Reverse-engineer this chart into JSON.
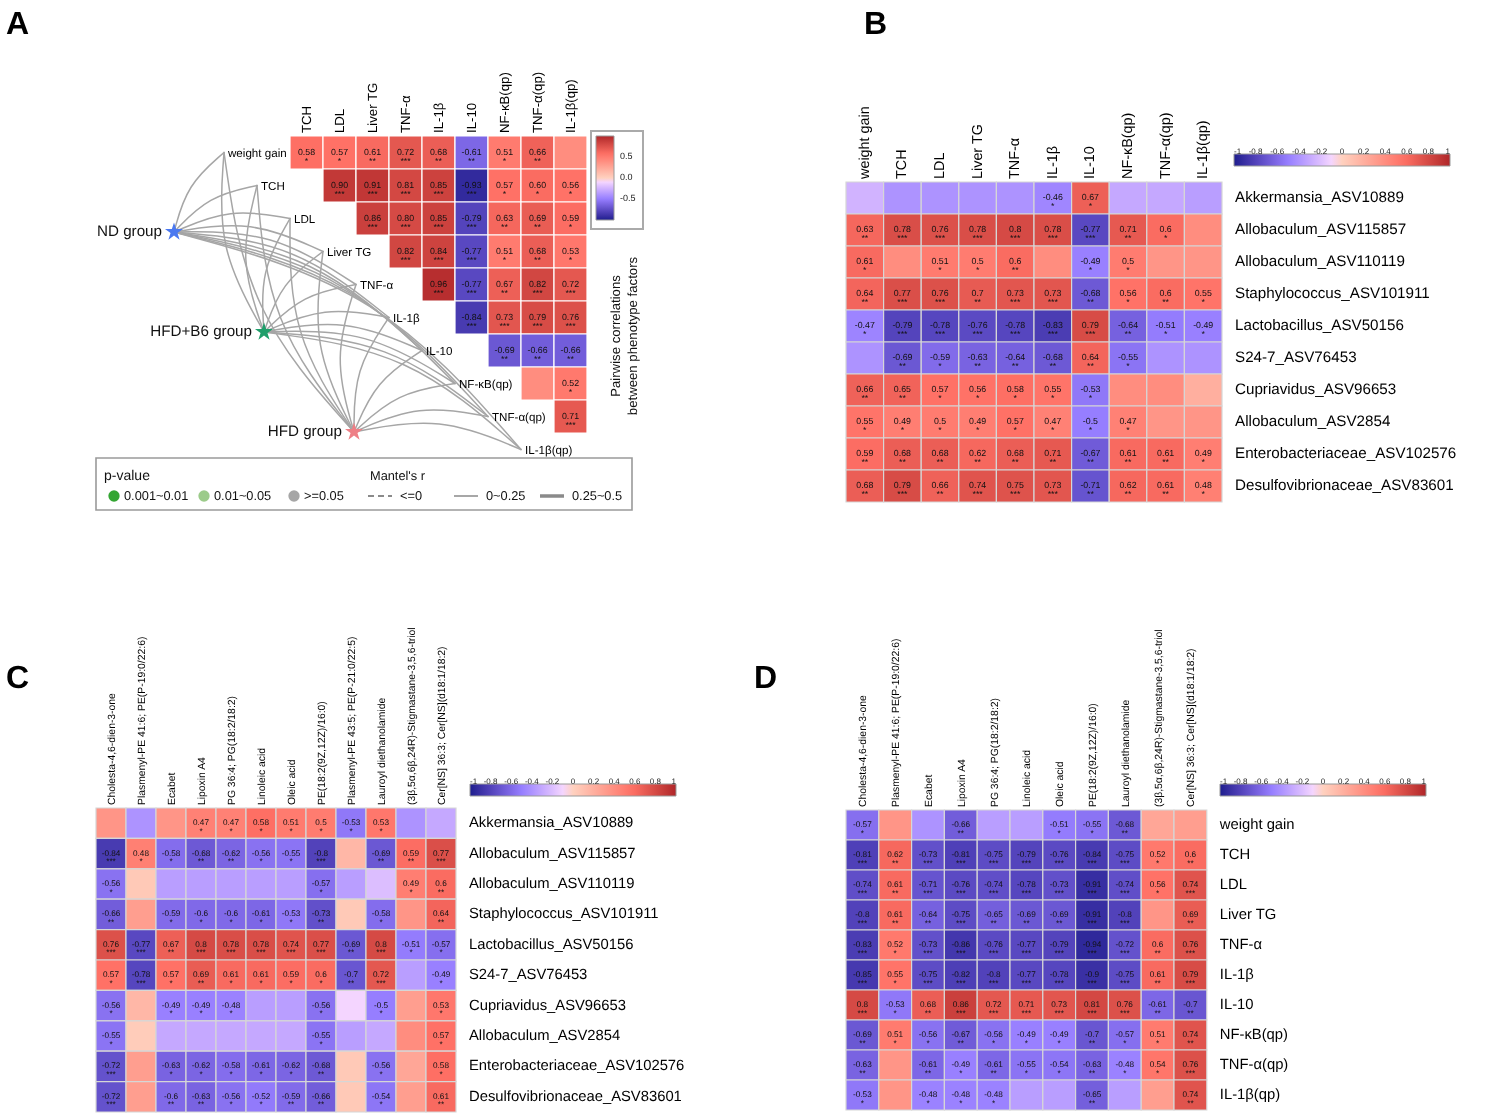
{
  "chart_data": [
    {
      "type": "other",
      "title": "A",
      "legend_title": "p-value",
      "categories": [
        "0.001~0.01",
        "0.01~0.05",
        ">=0.05"
      ],
      "colors": [
        "#33a532",
        "#9ccb8a",
        "#a6a6a6"
      ],
      "annotations": [
        "ND group",
        "HFD+B6 group",
        "HFD group",
        "Mantel's r",
        "<=0",
        "0~0.25",
        "0.25~0.5"
      ]
    },
    {
      "type": "heatmap",
      "categories": [
        null,
        "TCH",
        "LDL",
        "Liver TG",
        "TNF-α",
        "IL-1β",
        "IL-10",
        "NF-κB(qp)",
        "TNF-α(qp)",
        "IL-1β(qp)"
      ],
      "y_categories": [
        "weight gain",
        "TCH",
        "LDL",
        "Liver TG",
        "TNF-α",
        "IL-1β",
        "IL-10",
        "NF-κB(qp)",
        "TNF-α(qp)",
        "IL-1β(qp)"
      ],
      "clabel": "Pairwise correlations between phenotype factors",
      "clim": [
        -1,
        1
      ],
      "cticks": [
        0.5,
        {
          "value": 0,
          "label": "0.0"
        },
        -0.5
      ],
      "cells": [
        [
          null,
          0.58,
          0.57,
          0.61,
          0.72,
          0.68,
          -0.61,
          0.51,
          0.66,
          0.4
        ],
        [
          null,
          null,
          0.9,
          0.91,
          0.81,
          0.85,
          -0.93,
          0.57,
          0.6,
          0.56
        ],
        [
          null,
          null,
          null,
          0.86,
          0.8,
          0.85,
          -0.79,
          0.63,
          0.69,
          0.59
        ],
        [
          null,
          null,
          null,
          null,
          0.82,
          0.84,
          -0.77,
          0.51,
          0.68,
          0.53
        ],
        [
          null,
          null,
          null,
          null,
          null,
          0.96,
          -0.77,
          0.67,
          0.82,
          0.72
        ],
        [
          null,
          null,
          null,
          null,
          null,
          null,
          -0.84,
          0.73,
          0.79,
          0.76
        ],
        [
          null,
          null,
          null,
          null,
          null,
          null,
          null,
          -0.69,
          -0.66,
          -0.66
        ],
        [
          null,
          null,
          null,
          null,
          null,
          null,
          null,
          null,
          0.4,
          0.52
        ],
        [
          null,
          null,
          null,
          null,
          null,
          null,
          null,
          null,
          null,
          0.71
        ],
        [
          null,
          null,
          null,
          null,
          null,
          null,
          null,
          null,
          null,
          null
        ]
      ],
      "cell_labels": [
        [
          null,
          "0.58\n*",
          "0.57\n*",
          "0.61\n**",
          "0.72\n***",
          "0.68\n**",
          "-0.61\n**",
          "0.51\n*",
          "0.66\n**",
          null
        ],
        [
          null,
          null,
          "0.90\n***",
          "0.91\n***",
          "0.81\n***",
          "0.85\n***",
          "-0.93\n***",
          "0.57\n*",
          "0.60\n*",
          "0.56\n*"
        ],
        [
          null,
          null,
          null,
          "0.86\n***",
          "0.80\n***",
          "0.85\n***",
          "-0.79\n***",
          "0.63\n**",
          "0.69\n**",
          "0.59\n*"
        ],
        [
          null,
          null,
          null,
          null,
          "0.82\n***",
          "0.84\n***",
          "-0.77\n***",
          "0.51\n*",
          "0.68\n**",
          "0.53\n*"
        ],
        [
          null,
          null,
          null,
          null,
          null,
          "0.96\n***",
          "-0.77\n***",
          "0.67\n**",
          "0.82\n***",
          "0.72\n***"
        ],
        [
          null,
          null,
          null,
          null,
          null,
          null,
          "-0.84\n***",
          "0.73\n***",
          "0.79\n***",
          "0.76\n***"
        ],
        [
          null,
          null,
          null,
          null,
          null,
          null,
          null,
          "-0.69\n**",
          "-0.66\n**",
          "-0.66\n**"
        ],
        [
          null,
          null,
          null,
          null,
          null,
          null,
          null,
          null,
          null,
          "0.52\n*"
        ],
        [
          null,
          null,
          null,
          null,
          null,
          null,
          null,
          null,
          null,
          "0.71\n***"
        ],
        [
          null,
          null,
          null,
          null,
          null,
          null,
          null,
          null,
          null,
          null
        ]
      ]
    },
    {
      "type": "heatmap",
      "title": "B",
      "categories": [
        "weight gain",
        "TCH",
        "LDL",
        "Liver TG",
        "TNF-α",
        "IL-1β",
        "IL-10",
        "NF-κB(qp)",
        "TNF-α(qp)",
        "IL-1β(qp)"
      ],
      "y_categories": [
        "Akkermansia_ASV10889",
        "Allobaculum_ASV115857",
        "Allobaculum_ASV110119",
        "Staphylococcus_ASV101911",
        "Lactobacillus_ASV50156",
        "S24-7_ASV76453",
        "Cupriavidus_ASV96653",
        "Allobaculum_ASV2854",
        "Enterobacteriaceae_ASV102576",
        "Desulfovibrionaceae_ASV83601"
      ],
      "clim": [
        -1,
        1
      ],
      "cticks": [
        -1,
        -0.8,
        -0.6,
        -0.4,
        -0.2,
        0,
        0.2,
        0.4,
        0.6,
        0.8,
        1
      ],
      "cells": [
        [
          -0.25,
          -0.4,
          -0.4,
          -0.4,
          -0.4,
          -0.46,
          0.67,
          -0.3,
          -0.3,
          -0.35
        ],
        [
          0.63,
          0.78,
          0.76,
          0.78,
          0.8,
          0.78,
          -0.77,
          0.71,
          0.6,
          0.4
        ],
        [
          0.61,
          0.4,
          0.51,
          0.5,
          0.6,
          0.4,
          -0.49,
          0.5,
          0.35,
          0.35
        ],
        [
          0.64,
          0.77,
          0.76,
          0.7,
          0.73,
          0.73,
          -0.68,
          0.56,
          0.6,
          0.55
        ],
        [
          -0.47,
          -0.79,
          -0.78,
          -0.76,
          -0.78,
          -0.83,
          0.79,
          -0.64,
          -0.51,
          -0.49
        ],
        [
          -0.4,
          -0.69,
          -0.59,
          -0.63,
          -0.64,
          -0.68,
          0.64,
          -0.55,
          -0.4,
          -0.4
        ],
        [
          0.66,
          0.65,
          0.57,
          0.56,
          0.58,
          0.55,
          -0.53,
          0.4,
          0.4,
          0.2
        ],
        [
          0.55,
          0.49,
          0.5,
          0.49,
          0.57,
          0.47,
          -0.5,
          0.47,
          0.35,
          0.35
        ],
        [
          0.59,
          0.68,
          0.68,
          0.62,
          0.68,
          0.71,
          -0.67,
          0.61,
          0.61,
          0.49
        ],
        [
          0.68,
          0.79,
          0.66,
          0.74,
          0.75,
          0.73,
          -0.71,
          0.62,
          0.61,
          0.48
        ]
      ],
      "cell_labels": [
        [
          null,
          null,
          null,
          null,
          null,
          "-0.46\n*",
          "0.67\n*",
          null,
          null,
          null
        ],
        [
          "0.63\n**",
          "0.78\n***",
          "0.76\n***",
          "0.78\n***",
          "0.8\n***",
          "0.78\n***",
          "-0.77\n***",
          "0.71\n**",
          "0.6\n*",
          null
        ],
        [
          "0.61\n*",
          null,
          "0.51\n*",
          "0.5\n*",
          "0.6\n**",
          null,
          "-0.49\n*",
          "0.5\n*",
          null,
          null
        ],
        [
          "0.64\n**",
          "0.77\n***",
          "0.76\n***",
          "0.7\n**",
          "0.73\n***",
          "0.73\n***",
          "-0.68\n**",
          "0.56\n*",
          "0.6\n**",
          "0.55\n*"
        ],
        [
          "-0.47\n*",
          "-0.79\n***",
          "-0.78\n***",
          "-0.76\n***",
          "-0.78\n***",
          "-0.83\n***",
          "0.79\n***",
          "-0.64\n**",
          "-0.51\n*",
          "-0.49\n*"
        ],
        [
          null,
          "-0.69\n**",
          "-0.59\n*",
          "-0.63\n**",
          "-0.64\n**",
          "-0.68\n**",
          "0.64\n**",
          "-0.55\n*",
          null,
          null
        ],
        [
          "0.66\n**",
          "0.65\n**",
          "0.57\n*",
          "0.56\n*",
          "0.58\n*",
          "0.55\n*",
          "-0.53\n*",
          null,
          null,
          null
        ],
        [
          "0.55\n*",
          "0.49\n*",
          "0.5\n*",
          "0.49\n*",
          "0.57\n*",
          "0.47\n*",
          "-0.5\n*",
          "0.47\n*",
          null,
          null
        ],
        [
          "0.59\n**",
          "0.68\n**",
          "0.68\n**",
          "0.62\n**",
          "0.68\n**",
          "0.71\n**",
          "-0.67\n**",
          "0.61\n**",
          "0.61\n**",
          "0.49\n*"
        ],
        [
          "0.68\n**",
          "0.79\n***",
          "0.66\n**",
          "0.74\n***",
          "0.75\n***",
          "0.73\n***",
          "-0.71\n**",
          "0.62\n**",
          "0.61\n**",
          "0.48\n*"
        ]
      ]
    },
    {
      "type": "heatmap",
      "title": "C",
      "categories": [
        "Cholesta-4,6-dien-3-one",
        "Plasmenyl-PE 41:6; PE(P-19:0/22:6)",
        "Ecabet",
        "Lipoxin A4",
        "PG 36:4; PG(18:2/18:2)",
        "Linoleic acid",
        "Oleic acid",
        "PE(18:2(9Z,12Z)/16:0)",
        "Plasmenyl-PE 43:5; PE(P-21:0/22:5)",
        "Lauroyl diethanolamide",
        "(3β,5α,6β,24R)-Stigmastane-3,5,6-triol",
        "Cer[NS] 36:3; Cer[NS](d18:1/18:2)"
      ],
      "y_categories": [
        "Akkermansia_ASV10889",
        "Allobaculum_ASV115857",
        "Allobaculum_ASV110119",
        "Staphylococcus_ASV101911",
        "Lactobacillus_ASV50156",
        "S24-7_ASV76453",
        "Cupriavidus_ASV96653",
        "Allobaculum_ASV2854",
        "Enterobacteriaceae_ASV102576",
        "Desulfovibrionaceae_ASV83601"
      ],
      "clim": [
        -1,
        1
      ],
      "cticks": [
        -1,
        -0.8,
        -0.6,
        -0.4,
        -0.2,
        0,
        0.2,
        0.4,
        0.6,
        0.8,
        1
      ],
      "cells": [
        [
          0.35,
          -0.4,
          0.35,
          0.47,
          0.47,
          0.58,
          0.51,
          0.5,
          -0.53,
          0.53,
          -0.4,
          -0.3
        ],
        [
          -0.84,
          0.48,
          -0.58,
          -0.68,
          -0.62,
          -0.56,
          -0.55,
          -0.8,
          0.15,
          -0.69,
          0.59,
          0.77
        ],
        [
          -0.56,
          0.05,
          -0.35,
          -0.35,
          -0.35,
          -0.35,
          -0.35,
          -0.57,
          -0.35,
          -0.2,
          0.49,
          0.6
        ],
        [
          -0.66,
          0.3,
          -0.59,
          -0.6,
          -0.6,
          -0.61,
          -0.53,
          -0.73,
          0.05,
          -0.58,
          0.35,
          0.64
        ],
        [
          0.76,
          -0.77,
          0.67,
          0.8,
          0.78,
          0.78,
          0.74,
          0.77,
          -0.69,
          0.8,
          -0.51,
          -0.57
        ],
        [
          0.57,
          -0.78,
          0.57,
          0.69,
          0.61,
          0.61,
          0.59,
          0.6,
          -0.7,
          0.72,
          -0.35,
          -0.49
        ],
        [
          -0.56,
          0.15,
          -0.49,
          -0.49,
          -0.48,
          -0.35,
          -0.35,
          -0.56,
          -0.1,
          -0.5,
          0.3,
          0.53
        ],
        [
          -0.55,
          0.03,
          -0.3,
          -0.3,
          -0.3,
          -0.3,
          -0.3,
          -0.55,
          -0.35,
          -0.3,
          0.4,
          0.57
        ],
        [
          -0.72,
          0.3,
          -0.63,
          -0.62,
          -0.58,
          -0.61,
          -0.62,
          -0.68,
          0.05,
          -0.56,
          0.25,
          0.58
        ],
        [
          -0.72,
          0.3,
          -0.6,
          -0.63,
          -0.56,
          -0.52,
          -0.59,
          -0.66,
          0.05,
          -0.54,
          0.3,
          0.61
        ]
      ],
      "cell_labels": [
        [
          null,
          null,
          null,
          "0.47\n*",
          "0.47\n*",
          "0.58\n*",
          "0.51\n*",
          "0.5\n*",
          "-0.53\n*",
          "0.53\n*",
          null,
          null
        ],
        [
          "-0.84\n***",
          "0.48\n*",
          "-0.58\n*",
          "-0.68\n**",
          "-0.62\n**",
          "-0.56\n*",
          "-0.55\n*",
          "-0.8\n***",
          null,
          "-0.69\n**",
          "0.59\n**",
          "0.77\n***"
        ],
        [
          "-0.56\n*",
          null,
          null,
          null,
          null,
          null,
          null,
          "-0.57\n*",
          null,
          null,
          "0.49\n*",
          "0.6\n**"
        ],
        [
          "-0.66\n**",
          null,
          "-0.59\n*",
          "-0.6\n*",
          "-0.6\n*",
          "-0.61\n*",
          "-0.53\n*",
          "-0.73\n**",
          null,
          "-0.58\n*",
          null,
          "0.64\n**"
        ],
        [
          "0.76\n***",
          "-0.77\n***",
          "0.67\n**",
          "0.8\n***",
          "0.78\n***",
          "0.78\n***",
          "0.74\n***",
          "0.77\n***",
          "-0.69\n**",
          "0.8\n***",
          "-0.51\n*",
          "-0.57\n*"
        ],
        [
          "0.57\n*",
          "-0.78\n***",
          "0.57\n*",
          "0.69\n**",
          "0.61\n*",
          "0.61\n*",
          "0.59\n*",
          "0.6\n*",
          "-0.7\n**",
          "0.72\n***",
          null,
          "-0.49\n*"
        ],
        [
          "-0.56\n*",
          null,
          "-0.49\n*",
          "-0.49\n*",
          "-0.48\n*",
          null,
          null,
          "-0.56\n*",
          null,
          "-0.5\n*",
          null,
          "0.53\n*"
        ],
        [
          "-0.55\n*",
          null,
          null,
          null,
          null,
          null,
          null,
          "-0.55\n*",
          null,
          null,
          null,
          "0.57\n*"
        ],
        [
          "-0.72\n***",
          null,
          "-0.63\n*",
          "-0.62\n*",
          "-0.58\n*",
          "-0.61\n*",
          "-0.62\n*",
          "-0.68\n**",
          null,
          "-0.56\n*",
          null,
          "0.58\n*"
        ],
        [
          "-0.72\n***",
          null,
          "-0.6\n**",
          "-0.63\n**",
          "-0.56\n*",
          "-0.52\n*",
          "-0.59\n**",
          "-0.66\n**",
          null,
          "-0.54\n*",
          null,
          "0.61\n**"
        ]
      ]
    },
    {
      "type": "heatmap",
      "title": "D",
      "categories": [
        "Cholesta-4,6-dien-3-one",
        "Plasmenyl-PE 41:6; PE(P-19:0/22:6)",
        "Ecabet",
        "Lipoxin A4",
        "PG 36:4; PG(18:2/18:2)",
        "Linoleic acid",
        "Oleic acid",
        "PE(18:2(9Z,12Z)/16:0)",
        "Lauroyl diethanolamide",
        "(3β,5α,6β,24R)-Stigmastane-3,5,6-triol",
        "Cer[NS] 36:3; Cer[NS](d18:1/18:2)"
      ],
      "y_categories": [
        "weight gain",
        "TCH",
        "LDL",
        "Liver TG",
        "TNF-α",
        "IL-1β",
        "IL-10",
        "NF-κB(qp)",
        "TNF-α(qp)",
        "IL-1β(qp)"
      ],
      "clim": [
        -1,
        1
      ],
      "cticks": [
        -1,
        -0.8,
        -0.6,
        -0.4,
        -0.2,
        0,
        0.2,
        0.4,
        0.6,
        0.8,
        1
      ],
      "cells": [
        [
          -0.57,
          0.35,
          -0.4,
          -0.66,
          -0.35,
          -0.35,
          -0.51,
          -0.55,
          -0.68,
          0.25,
          0.3
        ],
        [
          -0.81,
          0.62,
          -0.73,
          -0.81,
          -0.75,
          -0.79,
          -0.76,
          -0.84,
          -0.75,
          0.52,
          0.6
        ],
        [
          -0.74,
          0.61,
          -0.71,
          -0.76,
          -0.74,
          -0.78,
          -0.73,
          -0.91,
          -0.74,
          0.56,
          0.74
        ],
        [
          -0.8,
          0.61,
          -0.64,
          -0.75,
          -0.65,
          -0.69,
          -0.69,
          -0.91,
          -0.8,
          0.35,
          0.69
        ],
        [
          -0.83,
          0.52,
          -0.73,
          -0.86,
          -0.76,
          -0.77,
          -0.79,
          -0.94,
          -0.72,
          0.6,
          0.76
        ],
        [
          -0.85,
          0.55,
          -0.75,
          -0.82,
          -0.8,
          -0.77,
          -0.78,
          -0.9,
          -0.75,
          0.61,
          0.79
        ],
        [
          0.8,
          -0.53,
          0.68,
          0.86,
          0.72,
          0.71,
          0.73,
          0.81,
          0.76,
          -0.61,
          -0.7
        ],
        [
          -0.69,
          0.51,
          -0.56,
          -0.67,
          -0.56,
          -0.49,
          -0.49,
          -0.7,
          -0.57,
          0.51,
          0.74
        ],
        [
          -0.63,
          0.35,
          -0.61,
          -0.49,
          -0.61,
          -0.55,
          -0.54,
          -0.63,
          -0.48,
          0.54,
          0.76
        ],
        [
          -0.53,
          0.35,
          -0.48,
          -0.48,
          -0.48,
          -0.35,
          -0.35,
          -0.65,
          -0.35,
          0.3,
          0.74
        ]
      ],
      "cell_labels": [
        [
          "-0.57\n*",
          null,
          null,
          "-0.66\n**",
          null,
          null,
          "-0.51\n*",
          "-0.55\n*",
          "-0.68\n**",
          null,
          null
        ],
        [
          "-0.81\n***",
          "0.62\n**",
          "-0.73\n***",
          "-0.81\n***",
          "-0.75\n***",
          "-0.79\n***",
          "-0.76\n***",
          "-0.84\n***",
          "-0.75\n***",
          "0.52\n*",
          "0.6\n**"
        ],
        [
          "-0.74\n***",
          "0.61\n**",
          "-0.71\n***",
          "-0.76\n***",
          "-0.74\n***",
          "-0.78\n***",
          "-0.73\n***",
          "-0.91\n***",
          "-0.74\n***",
          "0.56\n*",
          "0.74\n***"
        ],
        [
          "-0.8\n***",
          "0.61\n**",
          "-0.64\n**",
          "-0.75\n***",
          "-0.65\n**",
          "-0.69\n**",
          "-0.69\n**",
          "-0.91\n***",
          "-0.8\n***",
          null,
          "0.69\n**"
        ],
        [
          "-0.83\n***",
          "0.52\n*",
          "-0.73\n***",
          "-0.86\n***",
          "-0.76\n***",
          "-0.77\n***",
          "-0.79\n***",
          "-0.94\n***",
          "-0.72\n***",
          "0.6\n**",
          "0.76\n***"
        ],
        [
          "-0.85\n***",
          "0.55\n*",
          "-0.75\n***",
          "-0.82\n***",
          "-0.8\n***",
          "-0.77\n***",
          "-0.78\n***",
          "-0.9\n***",
          "-0.75\n***",
          "0.61\n**",
          "0.79\n***"
        ],
        [
          "0.8\n***",
          "-0.53\n*",
          "0.68\n**",
          "0.86\n***",
          "0.72\n***",
          "0.71\n***",
          "0.73\n***",
          "0.81\n***",
          "0.76\n***",
          "-0.61\n**",
          "-0.7\n**"
        ],
        [
          "-0.69\n**",
          "0.51\n*",
          "-0.56\n*",
          "-0.67\n**",
          "-0.56\n*",
          "-0.49\n*",
          "-0.49\n*",
          "-0.7\n**",
          "-0.57\n*",
          "0.51\n*",
          "0.74\n**"
        ],
        [
          "-0.63\n**",
          null,
          "-0.61\n**",
          "-0.49\n*",
          "-0.61\n**",
          "-0.55\n*",
          "-0.54\n*",
          "-0.63\n**",
          "-0.48\n*",
          "0.54\n*",
          "0.76\n***"
        ],
        [
          "-0.53\n*",
          null,
          "-0.48\n*",
          "-0.48\n*",
          "-0.48\n*",
          null,
          null,
          "-0.65\n**",
          null,
          null,
          "0.74\n**"
        ]
      ]
    }
  ]
}
